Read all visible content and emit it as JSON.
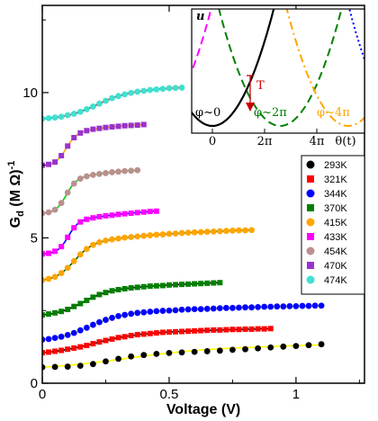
{
  "chart_data": {
    "type": "scatter",
    "xlabel": "Voltage (V)",
    "ylabel": "G_d (M Ω)^-1",
    "xlim": [
      0,
      1.27
    ],
    "ylim": [
      0,
      13.0
    ],
    "xticks": [
      0,
      0.5,
      1
    ],
    "xtick_labels": [
      "0",
      "0.5",
      "1"
    ],
    "yticks": [
      0,
      5,
      10
    ],
    "ytick_labels": [
      "0",
      "5",
      "10"
    ],
    "legend_position": "right",
    "series": [
      {
        "name": "293K",
        "color": "#000000",
        "fit_color": "#ffff00",
        "marker": "circle",
        "params": {
          "base": 0.55,
          "rise": 0.9,
          "v0": 0.3,
          "w": 0.14,
          "k": 1.0,
          "slope": 0.15,
          "vmax": 1.1
        },
        "x": [
          0.0,
          0.05,
          0.1,
          0.15,
          0.2,
          0.25,
          0.3,
          0.35,
          0.4,
          0.45,
          0.5,
          0.55,
          0.6,
          0.65,
          0.7,
          0.75,
          0.8,
          0.85,
          0.9,
          0.95,
          1.0,
          1.05,
          1.1
        ],
        "y": [
          0.55,
          0.56,
          0.57,
          0.6,
          0.66,
          0.75,
          0.84,
          0.92,
          0.97,
          1.01,
          1.04,
          1.06,
          1.08,
          1.1,
          1.12,
          1.15,
          1.17,
          1.2,
          1.23,
          1.26,
          1.28,
          1.31,
          1.34
        ]
      },
      {
        "name": "321K",
        "color": "#ff0000",
        "fit_color": "#000000",
        "marker": "square",
        "params": {
          "base": 1.05,
          "rise": 1.0,
          "v0": 0.18,
          "w": 0.08,
          "k": 0.4,
          "slope": 0.1,
          "vmax": 0.9
        }
      },
      {
        "name": "344K",
        "color": "#0000ff",
        "fit_color": "#ffff00",
        "marker": "circle",
        "params": {
          "base": 1.5,
          "rise": 1.45,
          "v0": 0.17,
          "w": 0.06,
          "k": 0.45,
          "slope": 0.08,
          "vmax": 1.1
        }
      },
      {
        "name": "370K",
        "color": "#008000",
        "fit_color": "#000000",
        "marker": "square",
        "params": {
          "base": 2.35,
          "rise": 1.4,
          "v0": 0.15,
          "w": 0.05,
          "k": 0.4,
          "slope": 0.15,
          "vmax": 0.7
        }
      },
      {
        "name": "415K",
        "color": "#ffa500",
        "fit_color": "#006400",
        "marker": "circle",
        "params": {
          "base": 3.55,
          "rise": 2.2,
          "v0": 0.12,
          "w": 0.035,
          "k": 0.35,
          "slope": 0.1,
          "vmax": 0.83
        }
      },
      {
        "name": "433K",
        "color": "#ff00ff",
        "fit_color": "#0000ff",
        "marker": "square",
        "params": {
          "base": 4.45,
          "rise": 2.0,
          "v0": 0.1,
          "w": 0.02,
          "k": 0.35,
          "slope": 0.2,
          "vmax": 0.45
        }
      },
      {
        "name": "454K",
        "color": "#bc8f8f",
        "fit_color": "#00d000",
        "marker": "circle",
        "params": {
          "base": 5.85,
          "rise": 2.05,
          "v0": 0.09,
          "w": 0.02,
          "k": 0.2,
          "slope": 0.0,
          "vmax": 0.37
        }
      },
      {
        "name": "470K",
        "color": "#9932cc",
        "fit_color": "#ffa500",
        "marker": "square",
        "params": {
          "base": 7.5,
          "rise": 1.9,
          "v0": 0.09,
          "w": 0.02,
          "k": 0.18,
          "slope": 0.0,
          "vmax": 0.4
        }
      },
      {
        "name": "474K",
        "color": "#40e0d0",
        "fit_color": "#c00000",
        "marker": "circle",
        "params": {
          "base": 9.1,
          "rise": 1.5,
          "v0": 0.2,
          "w": 0.06,
          "k": 0.4,
          "slope": 0.1,
          "vmax": 0.55
        }
      }
    ],
    "inset": {
      "ylabel": "u",
      "xlabel": "θ(t)",
      "xticks": [
        "0",
        "2π",
        "4π"
      ],
      "annotations": [
        "φ~0",
        "φ~2π",
        "φ~4π",
        "T"
      ],
      "curves": [
        {
          "color": "#ff00ff",
          "style": "dashed",
          "center_x": -1.2
        },
        {
          "color": "#000000",
          "style": "solid",
          "center_x": 0.0
        },
        {
          "color": "#008000",
          "style": "dashed",
          "center_x": 1.3
        },
        {
          "color": "#ffa500",
          "style": "dashdot",
          "center_x": 2.6
        },
        {
          "color": "#0000ff",
          "style": "dotted",
          "center_x": 3.8
        }
      ]
    }
  }
}
